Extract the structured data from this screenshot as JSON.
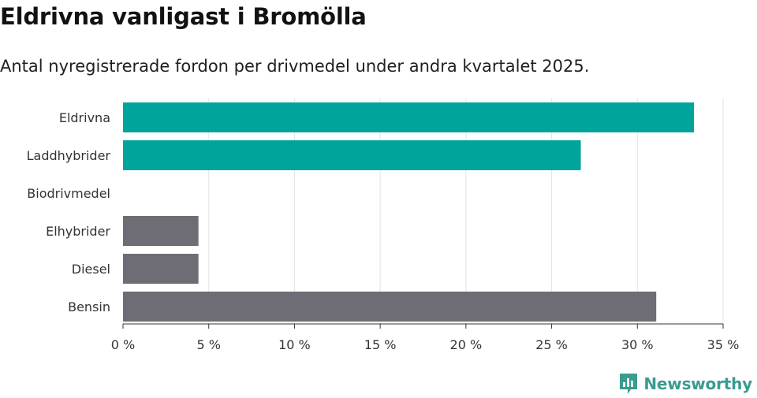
{
  "title": "Eldrivna vanligast i Bromölla",
  "subtitle": "Antal nyregistrerade fordon per drivmedel under andra kvartalet 2025.",
  "brand": {
    "name": "Newsworthy",
    "icon": "newsworthy-logo-icon"
  },
  "colors": {
    "highlight": "#00a49a",
    "other": "#6e6d75",
    "grid": "#e3e3e3",
    "axis": "#333333"
  },
  "chart_data": {
    "type": "bar",
    "orientation": "horizontal",
    "categories": [
      "Eldrivna",
      "Laddhybrider",
      "Biodrivmedel",
      "Elhybrider",
      "Diesel",
      "Bensin"
    ],
    "values": [
      33.3,
      26.7,
      0,
      4.4,
      4.4,
      31.1
    ],
    "highlighted": [
      true,
      true,
      true,
      false,
      false,
      false
    ],
    "xlim": [
      0,
      35
    ],
    "xticks": [
      0,
      5,
      10,
      15,
      20,
      25,
      30,
      35
    ],
    "xtick_labels": [
      "0 %",
      "5 %",
      "10 %",
      "15 %",
      "20 %",
      "25 %",
      "30 %",
      "35 %"
    ],
    "grid": "vertical",
    "legend": "none"
  }
}
